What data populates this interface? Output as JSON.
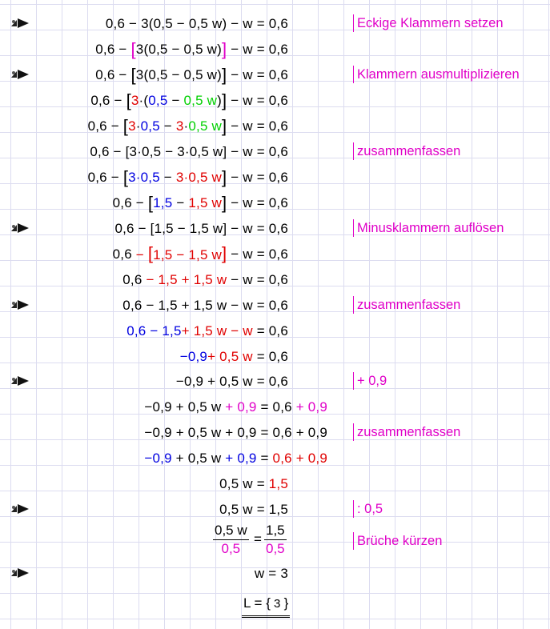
{
  "steps": [
    {
      "eq": "0,6 − 3(0,5 − 0,5 w) − w = 0,6",
      "note": "Eckige Klammern setzen",
      "icon": true
    },
    {
      "eq": "0,6 − [3(0,5 − 0,5 w)] − w = 0,6"
    },
    {
      "eq": "0,6 − [3(0,5 − 0,5 w)] − w = 0,6",
      "note": "Klammern ausmultiplizieren",
      "icon": true
    },
    {
      "eq": "0,6 − [3·(0,5 − 0,5 w)] − w = 0,6"
    },
    {
      "eq": "0,6 − [3·0,5 − 3·0,5 w] − w = 0,6"
    },
    {
      "eq": "0,6 − [3·0,5 − 3·0,5 w] − w = 0,6",
      "note": "zusammenfassen"
    },
    {
      "eq": "0,6 − [3·0,5 − 3·0,5 w] − w = 0,6"
    },
    {
      "eq": "0,6 − [1,5 − 1,5 w] − w = 0,6"
    },
    {
      "eq": "0,6 − [1,5 − 1,5 w] − w = 0,6",
      "note": "Minusklammern auflösen",
      "icon": true
    },
    {
      "eq": "0,6 − [1,5 − 1,5 w] − w = 0,6"
    },
    {
      "eq": "0,6 − 1,5 + 1,5 w − w = 0,6"
    },
    {
      "eq": "0,6 − 1,5 + 1,5 w − w = 0,6",
      "note": "zusammenfassen",
      "icon": true
    },
    {
      "eq": "0,6 − 1,5 + 1,5 w − w = 0,6"
    },
    {
      "eq": "−0,9 + 0,5 w = 0,6"
    },
    {
      "eq": "−0,9 + 0,5 w = 0,6",
      "note": "+ 0,9",
      "icon": true
    },
    {
      "eq": "−0,9 + 0,5 w + 0,9 = 0,6 + 0,9"
    },
    {
      "eq": "−0,9 + 0,5 w + 0,9 = 0,6 + 0,9",
      "note": "zusammenfassen"
    },
    {
      "eq": "−0,9 + 0,5 w + 0,9 = 0,6 + 0,9"
    },
    {
      "eq": "0,5 w = 1,5"
    },
    {
      "eq": "0,5 w = 1,5",
      "note": ": 0,5",
      "icon": true
    },
    {
      "eq": "0,5 w / 0,5 = 1,5 / 0,5",
      "note": "Brüche kürzen"
    },
    {
      "eq": "w = 3",
      "icon": true
    },
    {
      "eq": "L = { 3 }"
    }
  ],
  "parts": {
    "n06": "0,6",
    "n3": "3",
    "n05": "0,5",
    "n15": "1,5",
    "n09": "0,9",
    "w": "w",
    "mn09": "−0,9",
    "n05w": "0,5 w"
  }
}
